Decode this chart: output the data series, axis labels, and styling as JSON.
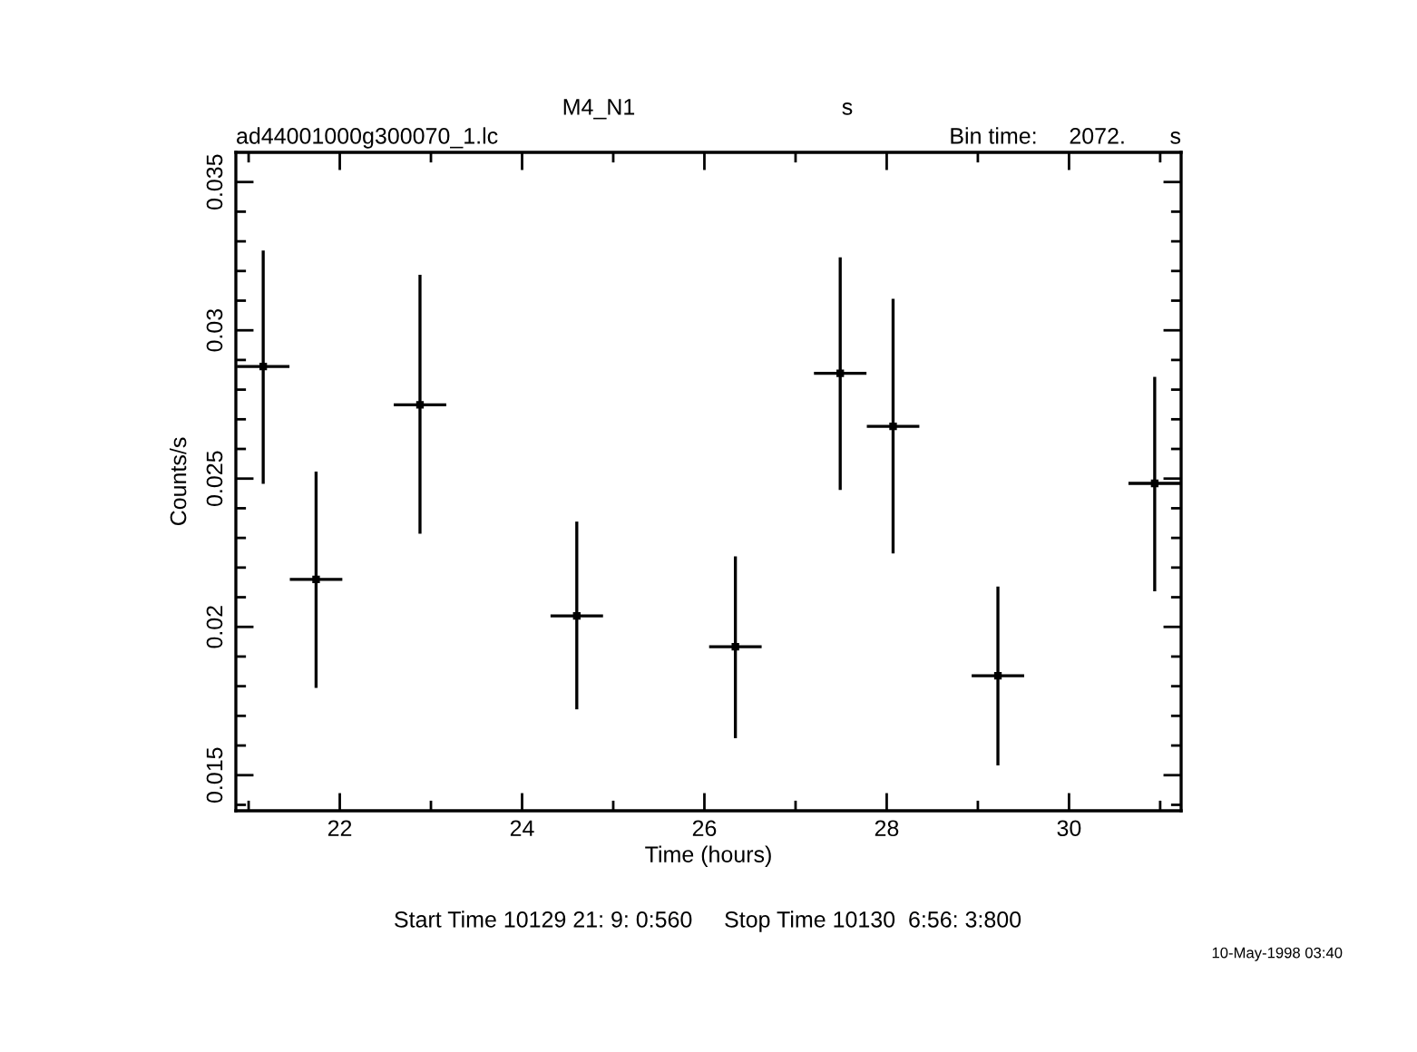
{
  "chart_data": {
    "type": "scatter",
    "title": "M4_N1",
    "xlabel": "Time (hours)",
    "ylabel": "Counts/s",
    "annotations": [
      "s",
      "ad44001000g300070_1.lc",
      "Bin time:     2072.       s",
      "Start Time 10129 21: 9: 0:560     Stop Time 10130  6:56: 3:800",
      "10-May-1998 03:40"
    ],
    "x": [
      21.16,
      21.74,
      22.88,
      24.6,
      26.34,
      27.49,
      28.07,
      29.22,
      30.94
    ],
    "series": [
      {
        "color": "#000000",
        "values": [
          0.02878,
          0.0216,
          0.02749,
          0.02037,
          0.01933,
          0.02855,
          0.02676,
          0.01835,
          0.02484
        ],
        "errors": [
          [
            0.02482,
            0.03269
          ],
          [
            0.01794,
            0.02524
          ],
          [
            0.02314,
            0.03187
          ],
          [
            0.01722,
            0.02355
          ],
          [
            0.01625,
            0.02238
          ],
          [
            0.02462,
            0.03246
          ],
          [
            0.02248,
            0.03106
          ],
          [
            0.01533,
            0.02136
          ],
          [
            0.0212,
            0.02843
          ]
        ],
        "xerrors": [
          0.288,
          0.288,
          0.288,
          0.288,
          0.288,
          0.288,
          0.288,
          0.288,
          0.288
        ]
      }
    ],
    "grid": false,
    "legend": false,
    "xlim": [
      20.86,
      31.23
    ],
    "ylim": [
      0.0138,
      0.036
    ],
    "xticks": [
      {
        "value": 21,
        "label": null
      },
      22,
      {
        "value": 23,
        "label": null
      },
      24,
      {
        "value": 25,
        "label": null
      },
      26,
      {
        "value": 27,
        "label": null
      },
      28,
      {
        "value": 29,
        "label": null
      },
      30,
      {
        "value": 31,
        "label": null
      }
    ],
    "yticks": [
      {
        "value": 0.014,
        "label": null
      },
      0.015,
      {
        "value": 0.016,
        "label": null
      },
      {
        "value": 0.017,
        "label": null
      },
      {
        "value": 0.018,
        "label": null
      },
      {
        "value": 0.019,
        "label": null
      },
      0.02,
      {
        "value": 0.021,
        "label": null
      },
      {
        "value": 0.022,
        "label": null
      },
      {
        "value": 0.023,
        "label": null
      },
      {
        "value": 0.024,
        "label": null
      },
      0.025,
      {
        "value": 0.026,
        "label": null
      },
      {
        "value": 0.027,
        "label": null
      },
      {
        "value": 0.028,
        "label": null
      },
      {
        "value": 0.029,
        "label": null
      },
      0.03,
      {
        "value": 0.031,
        "label": null
      },
      {
        "value": 0.032,
        "label": null
      },
      {
        "value": 0.033,
        "label": null
      },
      {
        "value": 0.034,
        "label": null
      },
      0.035
    ]
  }
}
